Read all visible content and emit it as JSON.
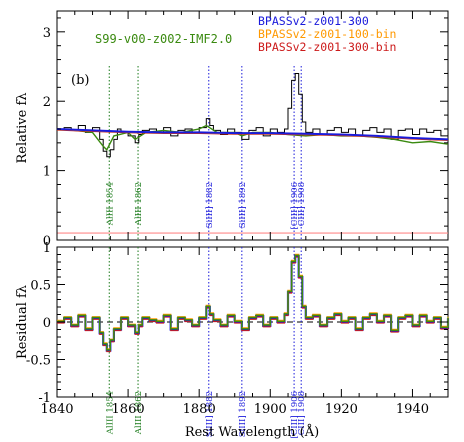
{
  "chart_data": [
    {
      "type": "line",
      "panel": "top",
      "panel_label": "(b)",
      "ylabel": "Relative fλ",
      "xlim": [
        1840,
        1950
      ],
      "ylim": [
        0,
        3.3
      ],
      "yticks": [
        0,
        1,
        2,
        3
      ],
      "model_label": "S99-v00-z002-IMF2.0",
      "model_color": "#3a8a10",
      "legend": [
        {
          "name": "BPASSv2-z001-300",
          "color": "#1a1adb"
        },
        {
          "name": "BPASSv2-z001-100-bin",
          "color": "#ff9900"
        },
        {
          "name": "BPASSv2-z001-300-bin",
          "color": "#cc1a1a"
        }
      ],
      "reference_line": {
        "y": 0.1,
        "color": "#ff8a8a"
      },
      "line_markers": [
        {
          "x": 1854.7,
          "label": "AlIII 1854",
          "color": "#1a7a1a"
        },
        {
          "x": 1862.8,
          "label": "AlIII 1862",
          "color": "#1a7a1a"
        },
        {
          "x": 1882.7,
          "label": "SiIII] 1882",
          "color": "#1a1adb"
        },
        {
          "x": 1892.0,
          "label": "SiIII] 1892",
          "color": "#1a1adb"
        },
        {
          "x": 1906.7,
          "label": "[CIII] 1906",
          "color": "#1a1adb"
        },
        {
          "x": 1908.7,
          "label": "CIII] 1908",
          "color": "#1a1adb"
        }
      ],
      "observed": {
        "x": [
          1840,
          1842,
          1844,
          1846,
          1848,
          1850,
          1852,
          1853,
          1854,
          1855,
          1856,
          1857,
          1858,
          1860,
          1862,
          1863,
          1864,
          1866,
          1868,
          1870,
          1872,
          1874,
          1876,
          1878,
          1880,
          1882,
          1883,
          1884,
          1886,
          1888,
          1890,
          1892,
          1894,
          1896,
          1898,
          1900,
          1902,
          1904,
          1905,
          1906,
          1907,
          1908,
          1909,
          1910,
          1912,
          1914,
          1916,
          1918,
          1920,
          1922,
          1924,
          1926,
          1928,
          1930,
          1932,
          1934,
          1936,
          1938,
          1940,
          1942,
          1944,
          1946,
          1948,
          1950
        ],
        "y": [
          1.6,
          1.62,
          1.58,
          1.65,
          1.55,
          1.62,
          1.45,
          1.28,
          1.2,
          1.3,
          1.45,
          1.6,
          1.55,
          1.5,
          1.4,
          1.52,
          1.58,
          1.6,
          1.55,
          1.62,
          1.5,
          1.58,
          1.6,
          1.55,
          1.62,
          1.75,
          1.65,
          1.58,
          1.52,
          1.6,
          1.55,
          1.45,
          1.58,
          1.62,
          1.5,
          1.6,
          1.55,
          1.6,
          1.9,
          2.3,
          2.4,
          2.1,
          1.7,
          1.55,
          1.6,
          1.52,
          1.58,
          1.62,
          1.55,
          1.6,
          1.5,
          1.58,
          1.62,
          1.55,
          1.6,
          1.45,
          1.58,
          1.6,
          1.52,
          1.6,
          1.55,
          1.58,
          1.5,
          1.55
        ]
      },
      "model_s99": {
        "x": [
          1840,
          1845,
          1850,
          1853,
          1854,
          1856,
          1860,
          1862,
          1865,
          1870,
          1875,
          1880,
          1882,
          1885,
          1890,
          1892,
          1895,
          1900,
          1905,
          1910,
          1915,
          1920,
          1925,
          1930,
          1935,
          1940,
          1945,
          1950
        ],
        "y": [
          1.6,
          1.58,
          1.55,
          1.35,
          1.3,
          1.5,
          1.55,
          1.45,
          1.55,
          1.58,
          1.55,
          1.6,
          1.65,
          1.55,
          1.55,
          1.5,
          1.55,
          1.55,
          1.52,
          1.5,
          1.52,
          1.5,
          1.5,
          1.48,
          1.45,
          1.4,
          1.42,
          1.38
        ]
      },
      "model_bpass": {
        "x": [
          1840,
          1850,
          1860,
          1870,
          1880,
          1890,
          1900,
          1910,
          1920,
          1930,
          1940,
          1950
        ],
        "y": [
          1.6,
          1.58,
          1.56,
          1.55,
          1.55,
          1.54,
          1.54,
          1.53,
          1.52,
          1.5,
          1.47,
          1.45
        ]
      }
    },
    {
      "type": "line",
      "panel": "bottom",
      "ylabel": "Residual fλ",
      "xlabel": "Rest Wavelength (Å)",
      "xlim": [
        1840,
        1950
      ],
      "ylim": [
        -1,
        1
      ],
      "yticks": [
        -1,
        -0.5,
        0,
        0.5,
        1
      ],
      "xticks": [
        1840,
        1860,
        1880,
        1900,
        1920,
        1940
      ],
      "zero_line": true,
      "residual": {
        "x": [
          1840,
          1842,
          1844,
          1846,
          1848,
          1850,
          1852,
          1853,
          1854,
          1855,
          1856,
          1858,
          1860,
          1862,
          1863,
          1864,
          1866,
          1868,
          1870,
          1872,
          1874,
          1876,
          1878,
          1880,
          1882,
          1883,
          1884,
          1886,
          1888,
          1890,
          1892,
          1894,
          1896,
          1898,
          1900,
          1902,
          1904,
          1905,
          1906,
          1907,
          1908,
          1909,
          1910,
          1912,
          1914,
          1916,
          1918,
          1920,
          1922,
          1924,
          1926,
          1928,
          1930,
          1932,
          1934,
          1936,
          1938,
          1940,
          1942,
          1944,
          1946,
          1948,
          1950
        ],
        "y": [
          0.0,
          0.05,
          -0.05,
          0.08,
          -0.1,
          0.05,
          -0.15,
          -0.3,
          -0.38,
          -0.25,
          -0.1,
          0.05,
          -0.05,
          -0.15,
          -0.05,
          0.05,
          0.02,
          0.0,
          0.08,
          -0.1,
          0.05,
          0.02,
          -0.05,
          0.05,
          0.2,
          0.1,
          0.02,
          -0.05,
          0.08,
          0.0,
          -0.1,
          0.05,
          0.08,
          -0.05,
          0.05,
          0.0,
          0.1,
          0.4,
          0.8,
          0.88,
          0.6,
          0.2,
          0.05,
          0.08,
          -0.05,
          0.05,
          0.1,
          0.0,
          0.05,
          -0.1,
          0.05,
          0.1,
          0.0,
          0.08,
          -0.12,
          0.05,
          0.08,
          -0.05,
          0.08,
          0.0,
          0.05,
          -0.08,
          0.05
        ]
      }
    }
  ]
}
